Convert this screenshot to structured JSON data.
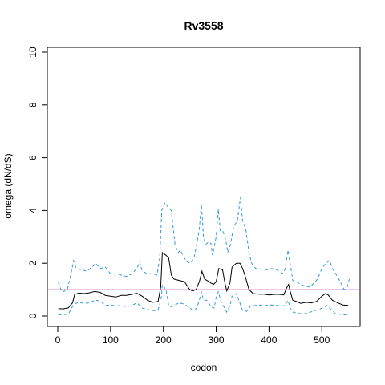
{
  "chart_data": {
    "type": "line",
    "title": "Rv3558",
    "xlabel": "codon",
    "ylabel": "omega (dN/dS)",
    "xlim": [
      0,
      560
    ],
    "ylim": [
      0,
      10
    ],
    "x_ticks": [
      0,
      100,
      200,
      300,
      400,
      500
    ],
    "y_ticks": [
      0,
      2,
      4,
      6,
      8,
      10
    ],
    "reference_line": {
      "y": 1,
      "color": "#cc66cc"
    },
    "series": [
      {
        "role": "estimate",
        "color": "#000000",
        "dash": "solid",
        "points": [
          [
            1,
            0.28
          ],
          [
            10,
            0.27
          ],
          [
            20,
            0.31
          ],
          [
            28,
            0.5
          ],
          [
            32,
            0.82
          ],
          [
            40,
            0.87
          ],
          [
            50,
            0.85
          ],
          [
            60,
            0.88
          ],
          [
            70,
            0.93
          ],
          [
            80,
            0.9
          ],
          [
            90,
            0.78
          ],
          [
            100,
            0.75
          ],
          [
            110,
            0.72
          ],
          [
            120,
            0.78
          ],
          [
            130,
            0.78
          ],
          [
            140,
            0.82
          ],
          [
            150,
            0.86
          ],
          [
            160,
            0.75
          ],
          [
            170,
            0.6
          ],
          [
            180,
            0.52
          ],
          [
            190,
            0.55
          ],
          [
            195,
            1.1
          ],
          [
            198,
            2.4
          ],
          [
            205,
            2.3
          ],
          [
            210,
            2.2
          ],
          [
            215,
            1.55
          ],
          [
            220,
            1.4
          ],
          [
            230,
            1.35
          ],
          [
            240,
            1.3
          ],
          [
            250,
            1.0
          ],
          [
            255,
            0.95
          ],
          [
            262,
            1.0
          ],
          [
            268,
            1.3
          ],
          [
            273,
            1.7
          ],
          [
            278,
            1.4
          ],
          [
            285,
            1.32
          ],
          [
            290,
            1.25
          ],
          [
            295,
            1.2
          ],
          [
            300,
            1.3
          ],
          [
            305,
            1.8
          ],
          [
            312,
            1.75
          ],
          [
            316,
            1.3
          ],
          [
            320,
            0.95
          ],
          [
            326,
            1.25
          ],
          [
            330,
            1.85
          ],
          [
            338,
            2.0
          ],
          [
            345,
            2.0
          ],
          [
            350,
            1.8
          ],
          [
            355,
            1.5
          ],
          [
            362,
            1.0
          ],
          [
            370,
            0.85
          ],
          [
            380,
            0.83
          ],
          [
            390,
            0.83
          ],
          [
            400,
            0.8
          ],
          [
            410,
            0.82
          ],
          [
            420,
            0.82
          ],
          [
            428,
            0.8
          ],
          [
            433,
            1.05
          ],
          [
            437,
            1.2
          ],
          [
            440,
            0.95
          ],
          [
            445,
            0.6
          ],
          [
            452,
            0.55
          ],
          [
            460,
            0.48
          ],
          [
            470,
            0.52
          ],
          [
            480,
            0.5
          ],
          [
            490,
            0.55
          ],
          [
            500,
            0.75
          ],
          [
            507,
            0.85
          ],
          [
            512,
            0.8
          ],
          [
            520,
            0.6
          ],
          [
            530,
            0.5
          ],
          [
            540,
            0.42
          ],
          [
            550,
            0.4
          ]
        ]
      },
      {
        "role": "upper-bound",
        "color": "#3399dd",
        "dash": "dashed",
        "points": [
          [
            1,
            1.28
          ],
          [
            8,
            0.9
          ],
          [
            18,
            1.0
          ],
          [
            25,
            1.6
          ],
          [
            30,
            2.1
          ],
          [
            35,
            1.8
          ],
          [
            45,
            1.75
          ],
          [
            55,
            1.7
          ],
          [
            65,
            1.85
          ],
          [
            72,
            2.0
          ],
          [
            80,
            1.8
          ],
          [
            90,
            1.85
          ],
          [
            100,
            1.6
          ],
          [
            110,
            1.6
          ],
          [
            120,
            1.55
          ],
          [
            130,
            1.5
          ],
          [
            140,
            1.6
          ],
          [
            150,
            1.8
          ],
          [
            155,
            2.05
          ],
          [
            160,
            1.7
          ],
          [
            170,
            1.6
          ],
          [
            180,
            1.6
          ],
          [
            188,
            1.55
          ],
          [
            193,
            2.2
          ],
          [
            197,
            4.0
          ],
          [
            203,
            4.3
          ],
          [
            210,
            4.1
          ],
          [
            215,
            4.0
          ],
          [
            222,
            2.7
          ],
          [
            228,
            2.4
          ],
          [
            232,
            2.5
          ],
          [
            238,
            2.25
          ],
          [
            245,
            2.05
          ],
          [
            252,
            2.0
          ],
          [
            258,
            2.2
          ],
          [
            263,
            2.7
          ],
          [
            268,
            3.3
          ],
          [
            272,
            4.25
          ],
          [
            276,
            3.0
          ],
          [
            280,
            2.7
          ],
          [
            285,
            2.8
          ],
          [
            290,
            2.75
          ],
          [
            293,
            2.3
          ],
          [
            296,
            2.6
          ],
          [
            300,
            3.0
          ],
          [
            304,
            4.05
          ],
          [
            308,
            3.2
          ],
          [
            313,
            3.2
          ],
          [
            318,
            2.9
          ],
          [
            322,
            2.4
          ],
          [
            327,
            2.7
          ],
          [
            333,
            3.4
          ],
          [
            340,
            3.6
          ],
          [
            346,
            4.5
          ],
          [
            350,
            3.6
          ],
          [
            356,
            3.3
          ],
          [
            362,
            2.4
          ],
          [
            367,
            2.0
          ],
          [
            375,
            1.8
          ],
          [
            385,
            1.78
          ],
          [
            395,
            1.75
          ],
          [
            405,
            1.8
          ],
          [
            415,
            1.75
          ],
          [
            425,
            1.6
          ],
          [
            430,
            1.75
          ],
          [
            436,
            2.5
          ],
          [
            440,
            2.0
          ],
          [
            445,
            1.35
          ],
          [
            452,
            1.3
          ],
          [
            460,
            1.2
          ],
          [
            470,
            1.12
          ],
          [
            478,
            1.1
          ],
          [
            485,
            1.25
          ],
          [
            492,
            1.4
          ],
          [
            500,
            1.8
          ],
          [
            508,
            2.0
          ],
          [
            515,
            2.1
          ],
          [
            520,
            1.8
          ],
          [
            528,
            1.55
          ],
          [
            535,
            1.3
          ],
          [
            542,
            1.0
          ],
          [
            548,
            1.1
          ],
          [
            552,
            1.4
          ]
        ]
      },
      {
        "role": "lower-bound",
        "color": "#3399dd",
        "dash": "dashed",
        "points": [
          [
            1,
            0.05
          ],
          [
            10,
            0.05
          ],
          [
            20,
            0.08
          ],
          [
            25,
            0.25
          ],
          [
            30,
            0.45
          ],
          [
            40,
            0.52
          ],
          [
            50,
            0.48
          ],
          [
            60,
            0.5
          ],
          [
            70,
            0.6
          ],
          [
            80,
            0.58
          ],
          [
            90,
            0.4
          ],
          [
            100,
            0.42
          ],
          [
            110,
            0.38
          ],
          [
            120,
            0.4
          ],
          [
            130,
            0.35
          ],
          [
            140,
            0.4
          ],
          [
            150,
            0.5
          ],
          [
            160,
            0.3
          ],
          [
            170,
            0.25
          ],
          [
            180,
            0.2
          ],
          [
            190,
            0.22
          ],
          [
            196,
            0.7
          ],
          [
            198,
            1.2
          ],
          [
            205,
            1.0
          ],
          [
            210,
            0.4
          ],
          [
            215,
            0.35
          ],
          [
            220,
            0.4
          ],
          [
            230,
            0.5
          ],
          [
            240,
            0.45
          ],
          [
            250,
            0.3
          ],
          [
            258,
            0.2
          ],
          [
            263,
            0.3
          ],
          [
            268,
            0.6
          ],
          [
            272,
            0.9
          ],
          [
            276,
            0.6
          ],
          [
            282,
            0.6
          ],
          [
            286,
            0.5
          ],
          [
            290,
            0.35
          ],
          [
            296,
            0.3
          ],
          [
            300,
            0.7
          ],
          [
            304,
            0.92
          ],
          [
            310,
            0.5
          ],
          [
            316,
            0.3
          ],
          [
            320,
            0.15
          ],
          [
            326,
            0.4
          ],
          [
            330,
            0.75
          ],
          [
            338,
            0.85
          ],
          [
            344,
            0.55
          ],
          [
            350,
            0.2
          ],
          [
            358,
            0.18
          ],
          [
            365,
            0.38
          ],
          [
            375,
            0.4
          ],
          [
            385,
            0.42
          ],
          [
            395,
            0.4
          ],
          [
            405,
            0.42
          ],
          [
            415,
            0.4
          ],
          [
            425,
            0.38
          ],
          [
            430,
            0.4
          ],
          [
            436,
            0.6
          ],
          [
            440,
            0.3
          ],
          [
            445,
            0.15
          ],
          [
            455,
            0.1
          ],
          [
            465,
            0.08
          ],
          [
            475,
            0.12
          ],
          [
            485,
            0.2
          ],
          [
            495,
            0.25
          ],
          [
            505,
            0.35
          ],
          [
            510,
            0.4
          ],
          [
            515,
            0.3
          ],
          [
            525,
            0.1
          ],
          [
            540,
            0.05
          ],
          [
            550,
            0.05
          ]
        ]
      }
    ]
  }
}
